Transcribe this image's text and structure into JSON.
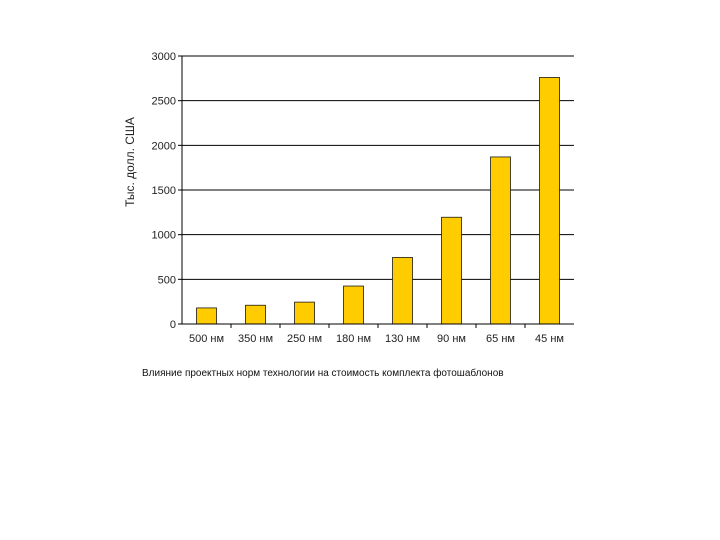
{
  "chart_data": {
    "type": "bar",
    "categories": [
      "500 нм",
      "350 нм",
      "250 нм",
      "180 нм",
      "130 нм",
      "90 нм",
      "65 нм",
      "45 нм"
    ],
    "values": [
      180,
      210,
      245,
      425,
      745,
      1195,
      1870,
      2760
    ],
    "ylabel": "Тыс. долл. США",
    "ylim": [
      0,
      3000
    ],
    "yticks": [
      0,
      500,
      1000,
      1500,
      2000,
      2500,
      3000
    ],
    "grid": true,
    "legend": "none",
    "colors": {
      "bar": "#FFCC00",
      "bar_stroke": "#1a1a1a",
      "grid": "#000000"
    }
  },
  "caption": "Влияние проектных норм технологии на стоимость комплекта фотошаблонов"
}
